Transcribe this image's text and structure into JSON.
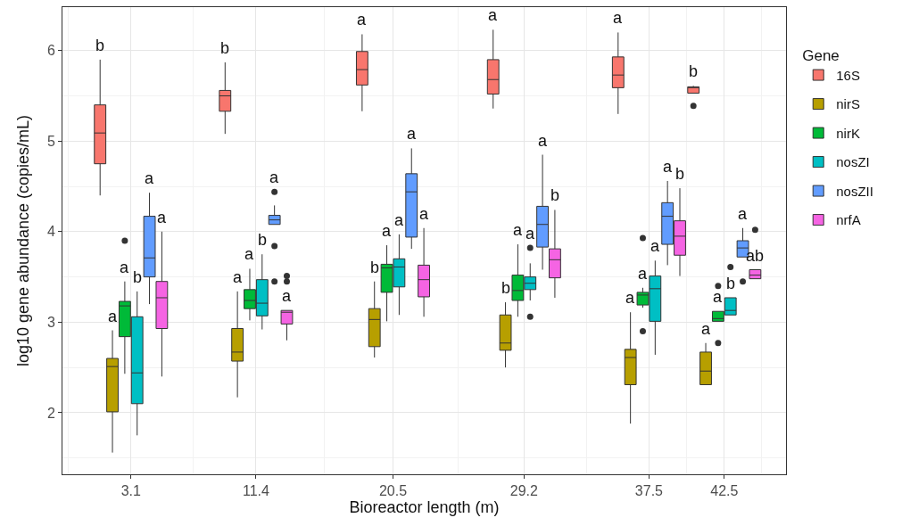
{
  "chart_data": {
    "type": "box",
    "xlabel": "Bioreactor length (m)",
    "ylabel": "log10 gene abundance (copies/mL)",
    "legend_title": "Gene",
    "x": [
      3.1,
      11.4,
      20.5,
      29.2,
      37.5,
      42.5
    ],
    "xlim": [
      -1.45,
      46.6
    ],
    "xticks": [
      3.1,
      11.4,
      20.5,
      29.2,
      37.5,
      42.5
    ],
    "ylim": [
      1.32,
      6.48
    ],
    "yticks": [
      2,
      3,
      4,
      5,
      6
    ],
    "grid": true,
    "legend": "right",
    "series": [
      {
        "name": "16S",
        "color": "#f8766d",
        "boxes": [
          {
            "low": 4.4,
            "q1": 4.75,
            "median": 5.09,
            "q3": 5.4,
            "high": 5.9
          },
          {
            "low": 5.08,
            "q1": 5.33,
            "median": 5.5,
            "q3": 5.56,
            "high": 5.87
          },
          {
            "low": 5.33,
            "q1": 5.62,
            "median": 5.79,
            "q3": 5.99,
            "high": 6.18
          },
          {
            "low": 5.36,
            "q1": 5.52,
            "median": 5.68,
            "q3": 5.9,
            "high": 6.23
          },
          {
            "low": 5.3,
            "q1": 5.59,
            "median": 5.73,
            "q3": 5.93,
            "high": 6.2
          },
          {
            "low": 5.53,
            "q1": 5.53,
            "median": 5.6,
            "q3": 5.6,
            "high": 5.61,
            "outliers": [
              5.39
            ]
          }
        ]
      },
      {
        "name": "nirS",
        "color": "#b79f00",
        "boxes": [
          {
            "low": 1.56,
            "q1": 2.01,
            "median": 2.51,
            "q3": 2.6,
            "high": 2.91
          },
          {
            "low": 2.17,
            "q1": 2.57,
            "median": 2.67,
            "q3": 2.93,
            "high": 3.34
          },
          {
            "low": 2.61,
            "q1": 2.73,
            "median": 3.03,
            "q3": 3.15,
            "high": 3.45
          },
          {
            "low": 2.5,
            "q1": 2.69,
            "median": 2.77,
            "q3": 3.08,
            "high": 3.22
          },
          {
            "low": 1.88,
            "q1": 2.31,
            "median": 2.61,
            "q3": 2.7,
            "high": 3.11
          },
          {
            "low": 2.31,
            "q1": 2.31,
            "median": 2.46,
            "q3": 2.67,
            "high": 2.77
          }
        ]
      },
      {
        "name": "nirK",
        "color": "#00ba38",
        "boxes": [
          {
            "low": 2.43,
            "q1": 2.84,
            "median": 3.18,
            "q3": 3.23,
            "high": 3.45,
            "outliers": [
              3.9
            ]
          },
          {
            "low": 3.02,
            "q1": 3.15,
            "median": 3.24,
            "q3": 3.36,
            "high": 3.59
          },
          {
            "low": 3.01,
            "q1": 3.33,
            "median": 3.6,
            "q3": 3.64,
            "high": 3.85
          },
          {
            "low": 3.06,
            "q1": 3.24,
            "median": 3.35,
            "q3": 3.52,
            "high": 3.86
          },
          {
            "low": 3.16,
            "q1": 3.19,
            "median": 3.3,
            "q3": 3.33,
            "high": 3.38,
            "outliers": [
              3.93,
              2.9
            ]
          },
          {
            "low": 3.01,
            "q1": 3.01,
            "median": 3.04,
            "q3": 3.12,
            "high": 3.12,
            "outliers": [
              3.4,
              2.77
            ]
          }
        ]
      },
      {
        "name": "nosZI",
        "color": "#00bfc4",
        "boxes": [
          {
            "low": 1.75,
            "q1": 2.1,
            "median": 2.44,
            "q3": 3.06,
            "high": 3.34
          },
          {
            "low": 2.92,
            "q1": 3.07,
            "median": 3.21,
            "q3": 3.47,
            "high": 3.75
          },
          {
            "low": 3.08,
            "q1": 3.39,
            "median": 3.61,
            "q3": 3.7,
            "high": 3.97
          },
          {
            "low": 3.24,
            "q1": 3.36,
            "median": 3.43,
            "q3": 3.5,
            "high": 3.65,
            "outliers": [
              3.82,
              3.06
            ]
          },
          {
            "low": 2.64,
            "q1": 3.01,
            "median": 3.37,
            "q3": 3.51,
            "high": 3.68
          },
          {
            "low": 3.08,
            "q1": 3.08,
            "median": 3.13,
            "q3": 3.27,
            "high": 3.27,
            "outliers": [
              3.61
            ]
          }
        ]
      },
      {
        "name": "nosZII",
        "color": "#619cff",
        "boxes": [
          {
            "low": 3.2,
            "q1": 3.5,
            "median": 3.71,
            "q3": 4.17,
            "high": 4.43
          },
          {
            "low": 4.08,
            "q1": 4.08,
            "median": 4.13,
            "q3": 4.18,
            "high": 4.29,
            "outliers": [
              4.44,
              3.84,
              3.45
            ]
          },
          {
            "low": 3.81,
            "q1": 3.94,
            "median": 4.44,
            "q3": 4.64,
            "high": 4.92
          },
          {
            "low": 3.58,
            "q1": 3.83,
            "median": 4.08,
            "q3": 4.28,
            "high": 4.85
          },
          {
            "low": 3.63,
            "q1": 3.86,
            "median": 4.17,
            "q3": 4.32,
            "high": 4.56
          },
          {
            "low": 3.72,
            "q1": 3.72,
            "median": 3.82,
            "q3": 3.9,
            "high": 4.04,
            "outliers": [
              3.45
            ]
          }
        ]
      },
      {
        "name": "nrfA",
        "color": "#f564e3",
        "boxes": [
          {
            "low": 2.4,
            "q1": 2.93,
            "median": 3.27,
            "q3": 3.45,
            "high": 4.0
          },
          {
            "low": 2.8,
            "q1": 2.98,
            "median": 3.11,
            "q3": 3.13,
            "high": 3.13,
            "outliers": [
              3.51,
              3.45
            ]
          },
          {
            "low": 3.06,
            "q1": 3.28,
            "median": 3.47,
            "q3": 3.63,
            "high": 4.04
          },
          {
            "low": 3.27,
            "q1": 3.49,
            "median": 3.69,
            "q3": 3.81,
            "high": 4.24
          },
          {
            "low": 3.51,
            "q1": 3.74,
            "median": 3.95,
            "q3": 4.12,
            "high": 4.48
          },
          {
            "low": 3.48,
            "q1": 3.48,
            "median": 3.52,
            "q3": 3.58,
            "high": 3.58,
            "outliers": [
              4.02
            ]
          }
        ]
      }
    ],
    "annotations": [
      "b",
      "a",
      "a",
      "b",
      "a",
      "a",
      "b",
      "a",
      "a",
      "b",
      "a",
      "a",
      "a",
      "b",
      "a",
      "a",
      "a",
      "a",
      "a",
      "b",
      "a",
      "a",
      "a",
      "b",
      "a",
      "a",
      "a",
      "a",
      "a",
      "b",
      "b",
      "a",
      "a",
      "b",
      "a",
      "ab"
    ]
  }
}
